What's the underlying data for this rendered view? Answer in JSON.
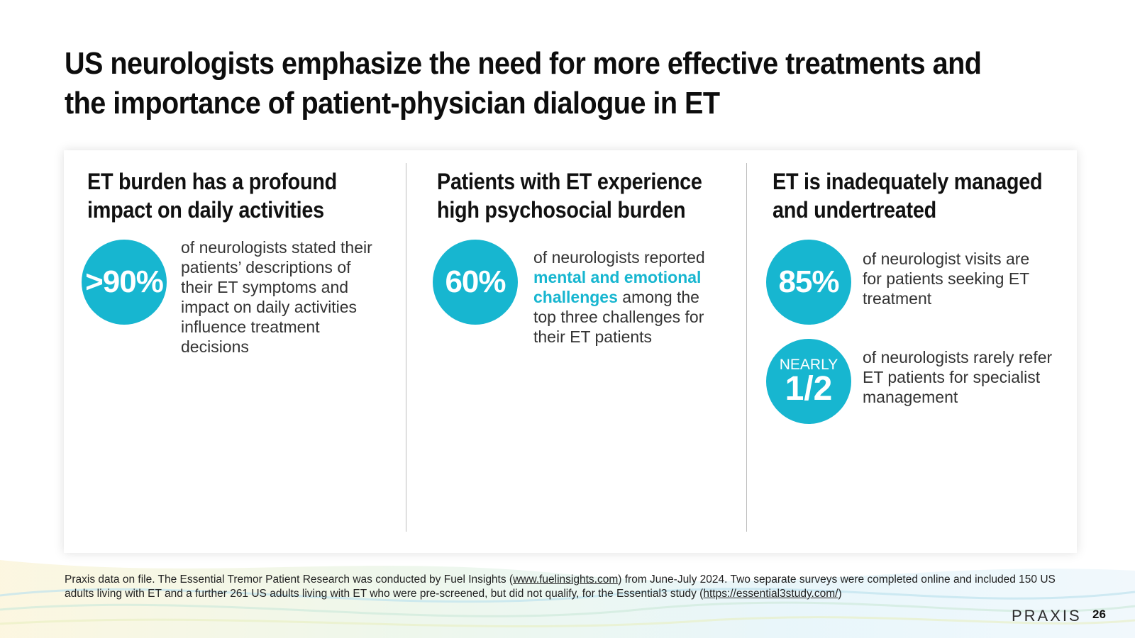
{
  "title": "US neurologists emphasize the need for more effective treatments and the importance of patient-physician dialogue in ET",
  "columns": [
    {
      "heading_line1": "ET burden has a profound",
      "heading_line2": "impact on daily activities",
      "stats": [
        {
          "value": ">90%",
          "lines": [
            "of neurologists stated their",
            "patients’ descriptions of",
            "their ET symptoms and",
            "impact on daily activities",
            "influence treatment",
            "decisions"
          ]
        }
      ]
    },
    {
      "heading_line1": "Patients with ET experience",
      "heading_line2": "high psychosocial burden",
      "stats": [
        {
          "value": "60%",
          "line1": "of neurologists reported",
          "highlight1": "mental and emotional",
          "highlight2": "challenges",
          "line3_rest": " among the",
          "line4": "top three challenges for",
          "line5": "their ET patients"
        }
      ]
    },
    {
      "heading_line1": "ET is inadequately managed",
      "heading_line2": "and undertreated",
      "stats": [
        {
          "value": "85%",
          "lines": [
            "of neurologist visits are",
            "for patients seeking ET",
            "treatment"
          ]
        },
        {
          "value_prefix": "NEARLY",
          "value": "1/2",
          "lines": [
            "of neurologists rarely refer",
            "ET patients for specialist",
            "management"
          ]
        }
      ]
    }
  ],
  "footnote": {
    "part1": "Praxis data on file. The Essential Tremor Patient Research was conducted by Fuel Insights (",
    "link1": "www.fuelinsights.com",
    "part2": ") from June-July 2024. Two separate surveys were completed online and included 150 US adults living with ET and a further 261 US adults living with ET who were pre-screened, but did not qualify, for the Essential3 study (",
    "link2": "https://essential3study.com/",
    "part3": ")"
  },
  "logo": "PRAXIS",
  "page_number": "26",
  "colors": {
    "accent": "#17b6d0",
    "title": "#0d0d0d",
    "body_text": "#333333"
  }
}
